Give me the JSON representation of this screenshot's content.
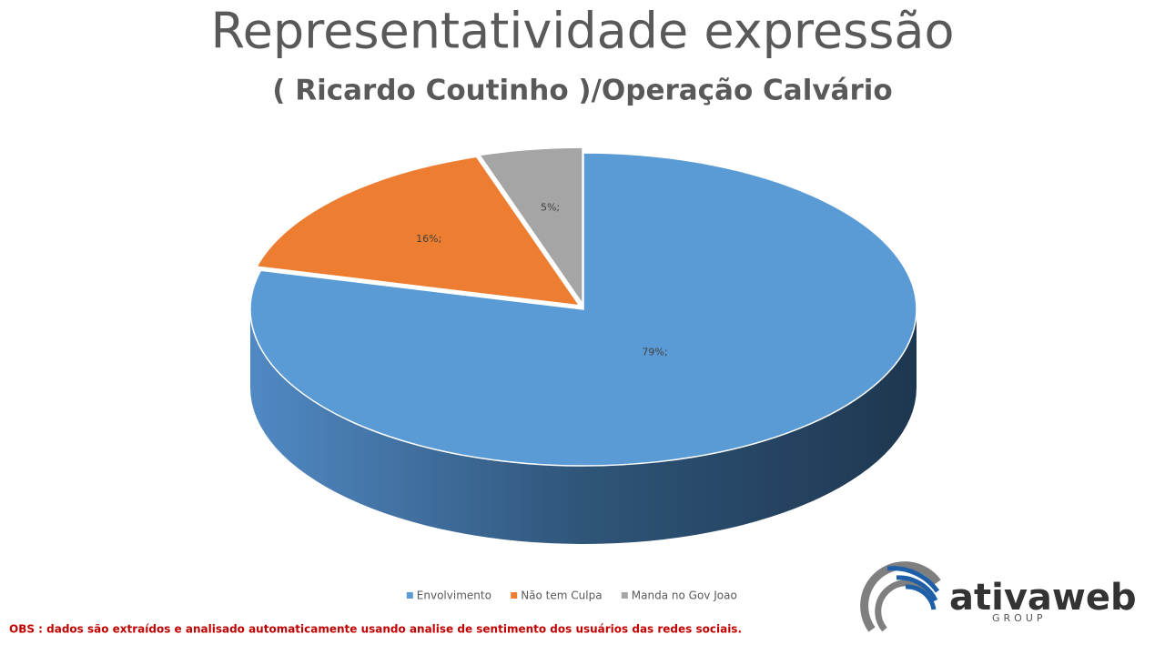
{
  "chart_data": {
    "type": "pie",
    "title": "Representatividade expressão",
    "subtitle": "( Ricardo Coutinho )/Operação Calvário",
    "categories": [
      "Envolvimento",
      "Não tem Culpa",
      "Manda no Gov Joao"
    ],
    "values": [
      79,
      16,
      5
    ],
    "value_labels": [
      "79%;",
      "16%;",
      "5%;"
    ],
    "colors": [
      "#5b9bd5",
      "#ed7d31",
      "#a5a5a5"
    ],
    "legend": "bottom"
  },
  "note": "OBS : dados são extraídos e analisado automaticamente usando analise de sentimento dos usuários das redes sociais.",
  "logo": {
    "name": "ativaweb",
    "tagline": "GROUP"
  }
}
